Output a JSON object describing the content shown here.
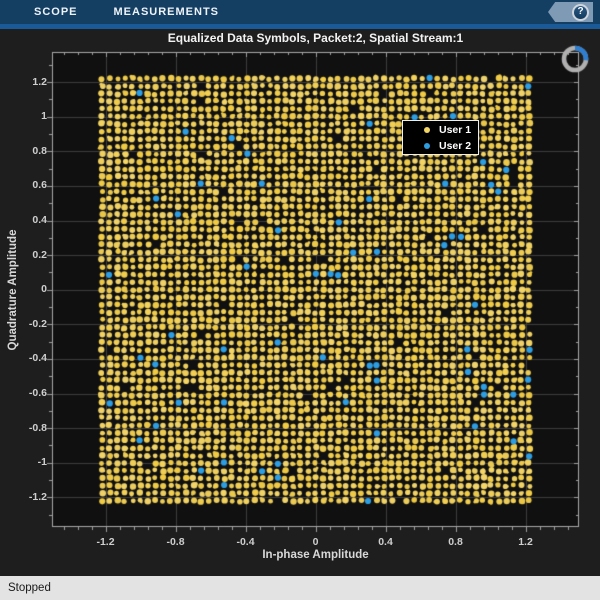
{
  "window": {
    "toolbar": {
      "tabs": [
        {
          "label": "SCOPE"
        },
        {
          "label": "MEASUREMENTS"
        }
      ],
      "help_button": {
        "glyph": "?"
      },
      "bg_color": "#143f63",
      "accent_color": "#1b5a99"
    },
    "status_bar": {
      "text": "Stopped",
      "bg_color": "#e3e3e3"
    }
  },
  "chart_data": {
    "type": "scatter",
    "title": "Equalized Data Symbols, Packet:2, Spatial Stream:1",
    "xlabel": "In-phase Amplitude",
    "ylabel": "Quadrature Amplitude",
    "xlim": [
      -1.51,
      1.51
    ],
    "ylim": [
      -1.37,
      1.37
    ],
    "x_tick_labels": [
      "-1.2",
      "-0.8",
      "-0.4",
      "0",
      "0.4",
      "0.8",
      "1.2"
    ],
    "y_tick_labels": [
      "-1.2",
      "-1",
      "-0.8",
      "-0.6",
      "-0.4",
      "-0.2",
      "0",
      "0.2",
      "0.4",
      "0.6",
      "0.8",
      "1",
      "1.2"
    ],
    "x_minor_step": 0.08,
    "y_minor_step": 0.1,
    "grid": true,
    "axes_bg": "#101010",
    "grid_color": "#3c3c3c",
    "box_color": "#a8a8a8",
    "tick_color": "#9f9f9f",
    "tick_label_color": "#cfcfcf",
    "legend": {
      "position": "inset-upper-right",
      "bg": "#000000",
      "border": "#efefef",
      "entries": [
        {
          "label": "User 1",
          "color": "#f3d664"
        },
        {
          "label": "User 2",
          "color": "#2d9ee2"
        }
      ]
    },
    "series": [
      {
        "name": "User 1",
        "marker": "point",
        "color": "#f3d664",
        "pattern": "dense uniform square grid of equalized QAM symbols",
        "extent": [
          -1.22,
          1.22
        ],
        "points_per_side": 57,
        "approx_count": 3120
      },
      {
        "name": "User 2",
        "marker": "point",
        "color": "#2d9ee2",
        "pattern": "sparse random scatter over the same grid",
        "approx_count": 70
      }
    ],
    "missing_points_approx": 60,
    "busy_spinner": {
      "ring_color": "#b0b0b0",
      "arc_color": "#2e7fd2"
    }
  }
}
